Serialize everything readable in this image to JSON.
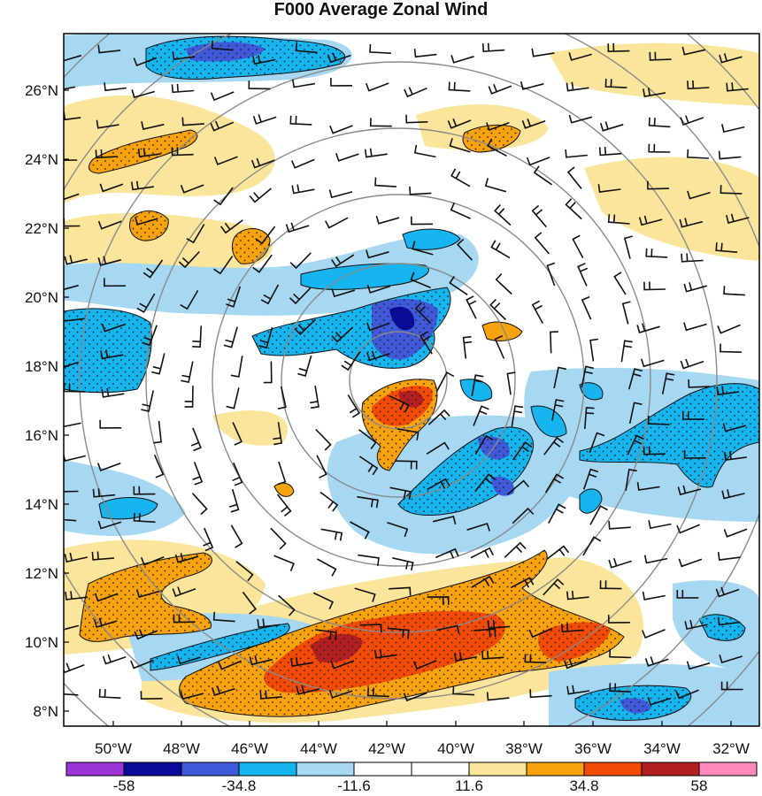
{
  "title": "F000 Average Zonal Wind",
  "lat_labels": [
    "26°N",
    "24°N",
    "22°N",
    "20°N",
    "18°N",
    "16°N",
    "14°N",
    "12°N",
    "10°N",
    "8°N"
  ],
  "lon_labels": [
    "50°W",
    "48°W",
    "46°W",
    "44°W",
    "42°W",
    "40°W",
    "38°W",
    "36°W",
    "34°W",
    "32°W"
  ],
  "colorbar": {
    "colors": [
      "#9b34d6",
      "#080a9a",
      "#3f59d9",
      "#16b5ef",
      "#a6d8f3",
      "#ffffff",
      "#ffffff",
      "#fbe59a",
      "#f8a30e",
      "#f34b07",
      "#b21f21",
      "#ff88bb"
    ],
    "labels": [
      "-58",
      "-34.8",
      "-11.6",
      "11.6",
      "34.8",
      "58"
    ]
  },
  "colors": {
    "pos1": "#fbe59a",
    "pos2": "#f8a30e",
    "pos3": "#f34b07",
    "pos4": "#b21f21",
    "neg1": "#a6d8f3",
    "neg2": "#16b5ef",
    "neg3": "#3f59d9",
    "neg4": "#080a9a"
  }
}
